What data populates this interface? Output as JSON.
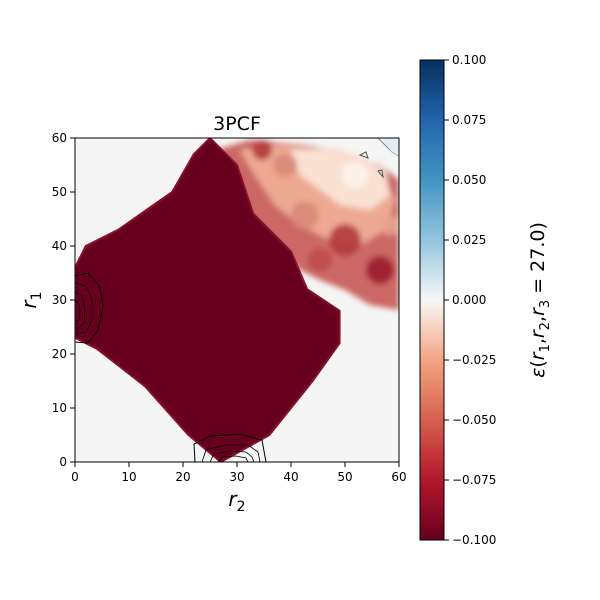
{
  "chart_data": {
    "type": "heatmap",
    "title": "3PCF",
    "xlabel": "r2",
    "ylabel": "r1",
    "xlim": [
      0,
      60
    ],
    "ylim": [
      0,
      60
    ],
    "xticks": [
      0,
      10,
      20,
      30,
      40,
      50,
      60
    ],
    "yticks": [
      0,
      10,
      20,
      30,
      40,
      50,
      60
    ],
    "grid": false,
    "colormap": "RdBu",
    "colorbar": {
      "label": "ε(r1, r2, r3 = 27.0)",
      "vmin": -0.1,
      "vmax": 0.1,
      "ticks": [
        "0.100",
        "0.075",
        "0.050",
        "0.025",
        "0.000",
        "−0.025",
        "−0.050",
        "−0.075",
        "−0.100"
      ]
    },
    "background_color": "#f5f5f5",
    "saturated_color": "#67001f",
    "r3": 27.0,
    "saturated_region_vertices": [
      [
        27,
        0
      ],
      [
        36,
        5
      ],
      [
        44,
        15
      ],
      [
        49,
        22
      ],
      [
        49,
        28
      ],
      [
        43,
        32
      ],
      [
        40,
        39
      ],
      [
        33,
        46
      ],
      [
        30,
        55
      ],
      [
        25,
        60
      ],
      [
        22,
        57
      ],
      [
        18,
        50
      ],
      [
        8,
        43
      ],
      [
        2,
        40
      ],
      [
        0,
        36
      ],
      [
        0,
        23
      ],
      [
        4,
        21
      ],
      [
        13,
        14
      ],
      [
        21,
        5
      ]
    ],
    "contour_annotations": [
      {
        "near": [
          2,
          28
        ],
        "color": "#000000"
      },
      {
        "near": [
          29,
          3
        ],
        "color": "#000000"
      },
      {
        "near": [
          54,
          57
        ],
        "color": "#555555"
      },
      {
        "near": [
          58,
          58
        ],
        "color": "#555555"
      }
    ]
  }
}
